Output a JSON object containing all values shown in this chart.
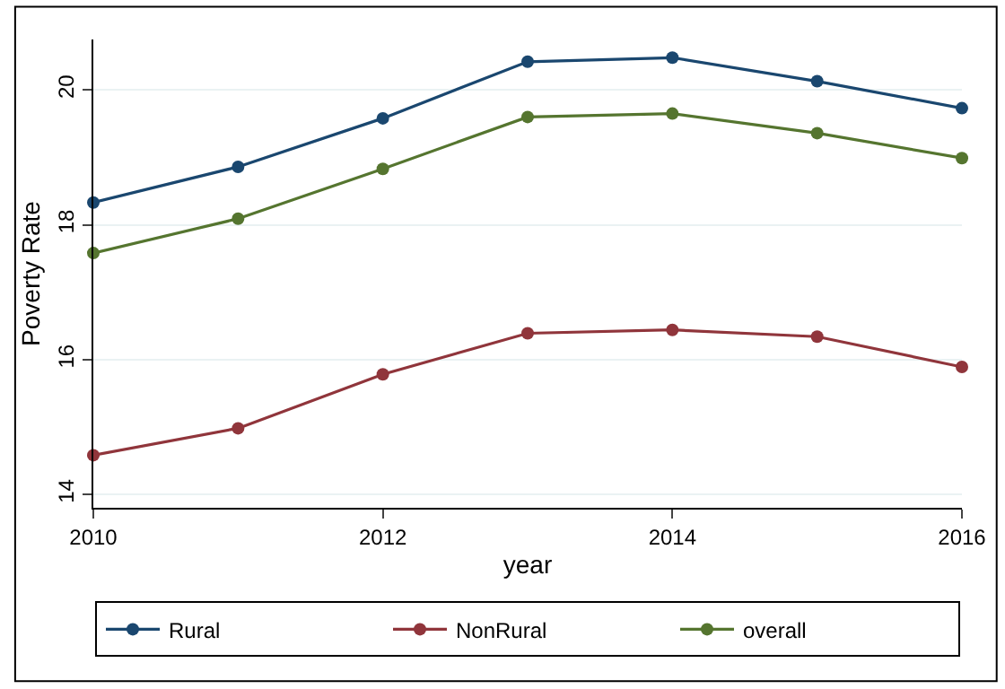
{
  "chart_data": {
    "type": "line",
    "xlabel": "year",
    "ylabel": "Poverty Rate",
    "x": [
      2010,
      2011,
      2012,
      2013,
      2014,
      2015,
      2016
    ],
    "series": [
      {
        "name": "Rural",
        "color": "#1a476f",
        "values": [
          18.33,
          18.86,
          19.58,
          20.42,
          20.48,
          20.13,
          19.73
        ]
      },
      {
        "name": "NonRural",
        "color": "#90353b",
        "values": [
          14.58,
          14.98,
          15.78,
          16.39,
          16.44,
          16.34,
          15.89
        ]
      },
      {
        "name": "overall",
        "color": "#55752f",
        "values": [
          17.58,
          18.09,
          18.83,
          19.6,
          19.65,
          19.36,
          18.99
        ]
      }
    ],
    "xlim": [
      2010,
      2016
    ],
    "xticks": [
      2010,
      2012,
      2014,
      2016
    ],
    "ylim": [
      13.8,
      20.75
    ],
    "yticks": [
      14,
      16,
      18,
      20
    ],
    "grid": "y",
    "legend": "bottom",
    "marker": "circle",
    "line_style": "solid"
  }
}
